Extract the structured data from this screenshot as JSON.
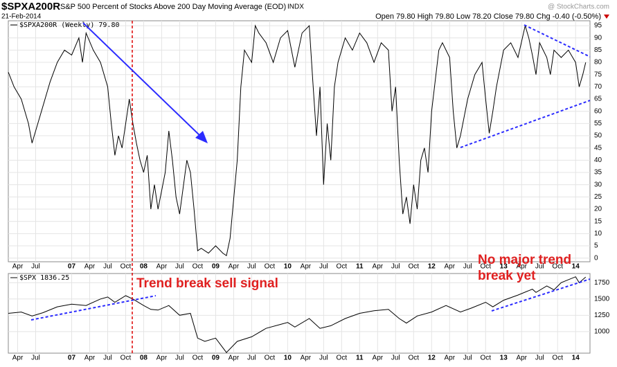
{
  "header": {
    "symbol": "$SPXA200R",
    "description": "S&P 500 Percent of Stocks Above 200 Day Moving Average (EOD)",
    "exchange": "INDX",
    "date": "21-Feb-2014",
    "quote": "Open 79.80  High 79.80  Low 78.20  Close 79.80  Chg -0.40 (-0.50%)",
    "watermark": "@ StockCharts.com"
  },
  "annotations": {
    "sell": "Trend break sell signal",
    "nobreak1": "No major trend",
    "nobreak2": "break yet"
  },
  "chart_data": [
    {
      "type": "line",
      "xlim": [
        2006.12,
        2014.2
      ],
      "ylim": [
        -1.5,
        97
      ],
      "grid": true,
      "yticks": [
        0,
        5,
        10,
        15,
        20,
        25,
        30,
        35,
        40,
        45,
        50,
        55,
        60,
        65,
        70,
        75,
        80,
        85,
        90,
        95
      ],
      "xticks": [
        {
          "value": 2006.25,
          "label": "Apr"
        },
        {
          "value": 2006.5,
          "label": "Jul"
        },
        {
          "value": 2007,
          "label": "07"
        },
        {
          "value": 2007.25,
          "label": "Apr"
        },
        {
          "value": 2007.5,
          "label": "Jul"
        },
        {
          "value": 2007.75,
          "label": "Oct"
        },
        {
          "value": 2008,
          "label": "08"
        },
        {
          "value": 2008.25,
          "label": "Apr"
        },
        {
          "value": 2008.5,
          "label": "Jul"
        },
        {
          "value": 2008.75,
          "label": "Oct"
        },
        {
          "value": 2009,
          "label": "09"
        },
        {
          "value": 2009.25,
          "label": "Apr"
        },
        {
          "value": 2009.5,
          "label": "Jul"
        },
        {
          "value": 2009.75,
          "label": "Oct"
        },
        {
          "value": 2010,
          "label": "10"
        },
        {
          "value": 2010.25,
          "label": "Apr"
        },
        {
          "value": 2010.5,
          "label": "Jul"
        },
        {
          "value": 2010.75,
          "label": "Oct"
        },
        {
          "value": 2011,
          "label": "11"
        },
        {
          "value": 2011.25,
          "label": "Apr"
        },
        {
          "value": 2011.5,
          "label": "Jul"
        },
        {
          "value": 2011.75,
          "label": "Oct"
        },
        {
          "value": 2012,
          "label": "12"
        },
        {
          "value": 2012.25,
          "label": "Apr"
        },
        {
          "value": 2012.5,
          "label": "Jul"
        },
        {
          "value": 2012.75,
          "label": "Oct"
        },
        {
          "value": 2013,
          "label": "13"
        },
        {
          "value": 2013.25,
          "label": "Apr"
        },
        {
          "value": 2013.5,
          "label": "Jul"
        },
        {
          "value": 2013.75,
          "label": "Oct"
        },
        {
          "value": 2014,
          "label": "14"
        }
      ],
      "x": [
        2006.12,
        2006.2,
        2006.3,
        2006.4,
        2006.45,
        2006.5,
        2006.6,
        2006.7,
        2006.8,
        2006.9,
        2007.0,
        2007.1,
        2007.15,
        2007.2,
        2007.3,
        2007.4,
        2007.5,
        2007.55,
        2007.6,
        2007.65,
        2007.7,
        2007.8,
        2007.85,
        2007.9,
        2007.95,
        2008.0,
        2008.05,
        2008.1,
        2008.15,
        2008.2,
        2008.3,
        2008.35,
        2008.4,
        2008.45,
        2008.5,
        2008.6,
        2008.65,
        2008.7,
        2008.75,
        2008.8,
        2008.9,
        2009.0,
        2009.1,
        2009.15,
        2009.2,
        2009.3,
        2009.35,
        2009.4,
        2009.5,
        2009.55,
        2009.6,
        2009.7,
        2009.8,
        2009.9,
        2010.0,
        2010.1,
        2010.2,
        2010.3,
        2010.35,
        2010.4,
        2010.45,
        2010.5,
        2010.55,
        2010.6,
        2010.65,
        2010.7,
        2010.8,
        2010.9,
        2011.0,
        2011.1,
        2011.2,
        2011.3,
        2011.4,
        2011.45,
        2011.5,
        2011.55,
        2011.6,
        2011.65,
        2011.7,
        2011.75,
        2011.8,
        2011.85,
        2011.9,
        2011.95,
        2012.0,
        2012.1,
        2012.15,
        2012.25,
        2012.3,
        2012.35,
        2012.4,
        2012.5,
        2012.6,
        2012.7,
        2012.75,
        2012.8,
        2012.85,
        2012.9,
        2013.0,
        2013.1,
        2013.2,
        2013.3,
        2013.35,
        2013.4,
        2013.45,
        2013.5,
        2013.6,
        2013.65,
        2013.7,
        2013.8,
        2013.9,
        2014.0,
        2014.05,
        2014.1,
        2014.14
      ],
      "series": [
        {
          "name": "$SPXA200R (Weekly) 79.80",
          "color": "#000000",
          "values": [
            76,
            70,
            65,
            55,
            47,
            52,
            62,
            72,
            80,
            85,
            83,
            90,
            80,
            92,
            85,
            80,
            70,
            55,
            42,
            50,
            45,
            65,
            55,
            47,
            40,
            35,
            42,
            20,
            30,
            20,
            35,
            52,
            40,
            25,
            18,
            40,
            35,
            20,
            3,
            4,
            2,
            5,
            2,
            1,
            8,
            40,
            70,
            85,
            80,
            95,
            92,
            88,
            80,
            90,
            93,
            78,
            92,
            95,
            72,
            50,
            70,
            30,
            55,
            40,
            70,
            80,
            90,
            85,
            92,
            88,
            80,
            88,
            85,
            60,
            70,
            40,
            18,
            25,
            14,
            30,
            20,
            40,
            45,
            35,
            60,
            85,
            88,
            82,
            60,
            45,
            50,
            65,
            75,
            80,
            65,
            51,
            60,
            70,
            85,
            88,
            82,
            95,
            90,
            83,
            75,
            88,
            82,
            75,
            85,
            82,
            85,
            80,
            70,
            75,
            80
          ]
        }
      ]
    },
    {
      "type": "line",
      "xlim": [
        2006.12,
        2014.2
      ],
      "ylim": [
        670,
        1890
      ],
      "grid": true,
      "yticks": [
        1000,
        1250,
        1500,
        1750
      ],
      "xticks": [
        {
          "value": 2006.25,
          "label": "Apr"
        },
        {
          "value": 2006.5,
          "label": "Jul"
        },
        {
          "value": 2007,
          "label": "07"
        },
        {
          "value": 2007.25,
          "label": "Apr"
        },
        {
          "value": 2007.5,
          "label": "Jul"
        },
        {
          "value": 2007.75,
          "label": "Oct"
        },
        {
          "value": 2008,
          "label": "08"
        },
        {
          "value": 2008.25,
          "label": "Apr"
        },
        {
          "value": 2008.5,
          "label": "Jul"
        },
        {
          "value": 2008.75,
          "label": "Oct"
        },
        {
          "value": 2009,
          "label": "09"
        },
        {
          "value": 2009.25,
          "label": "Apr"
        },
        {
          "value": 2009.5,
          "label": "Jul"
        },
        {
          "value": 2009.75,
          "label": "Oct"
        },
        {
          "value": 2010,
          "label": "10"
        },
        {
          "value": 2010.25,
          "label": "Apr"
        },
        {
          "value": 2010.5,
          "label": "Jul"
        },
        {
          "value": 2010.75,
          "label": "Oct"
        },
        {
          "value": 2011,
          "label": "11"
        },
        {
          "value": 2011.25,
          "label": "Apr"
        },
        {
          "value": 2011.5,
          "label": "Jul"
        },
        {
          "value": 2011.75,
          "label": "Oct"
        },
        {
          "value": 2012,
          "label": "12"
        },
        {
          "value": 2012.25,
          "label": "Apr"
        },
        {
          "value": 2012.5,
          "label": "Jul"
        },
        {
          "value": 2012.75,
          "label": "Oct"
        },
        {
          "value": 2013,
          "label": "13"
        },
        {
          "value": 2013.25,
          "label": "Apr"
        },
        {
          "value": 2013.5,
          "label": "Jul"
        },
        {
          "value": 2013.75,
          "label": "Oct"
        },
        {
          "value": 2014,
          "label": "14"
        }
      ],
      "x": [
        2006.12,
        2006.3,
        2006.45,
        2006.6,
        2006.8,
        2007.0,
        2007.2,
        2007.4,
        2007.5,
        2007.6,
        2007.75,
        2007.85,
        2008.0,
        2008.1,
        2008.2,
        2008.35,
        2008.5,
        2008.65,
        2008.75,
        2008.85,
        2009.0,
        2009.15,
        2009.3,
        2009.5,
        2009.7,
        2009.9,
        2010.0,
        2010.1,
        2010.3,
        2010.45,
        2010.6,
        2010.8,
        2011.0,
        2011.2,
        2011.4,
        2011.55,
        2011.65,
        2011.8,
        2012.0,
        2012.2,
        2012.4,
        2012.55,
        2012.75,
        2012.85,
        2013.0,
        2013.2,
        2013.4,
        2013.45,
        2013.6,
        2013.7,
        2013.8,
        2014.0,
        2014.05,
        2014.14
      ],
      "series": [
        {
          "name": "$SPX 1836.25",
          "color": "#000000",
          "values": [
            1280,
            1300,
            1240,
            1290,
            1380,
            1420,
            1400,
            1500,
            1530,
            1450,
            1550,
            1500,
            1400,
            1340,
            1330,
            1400,
            1250,
            1280,
            900,
            850,
            900,
            680,
            850,
            920,
            1050,
            1110,
            1140,
            1070,
            1200,
            1050,
            1090,
            1200,
            1280,
            1320,
            1340,
            1200,
            1130,
            1240,
            1300,
            1400,
            1300,
            1360,
            1450,
            1380,
            1480,
            1560,
            1650,
            1600,
            1700,
            1640,
            1750,
            1840,
            1750,
            1836
          ]
        }
      ]
    }
  ]
}
